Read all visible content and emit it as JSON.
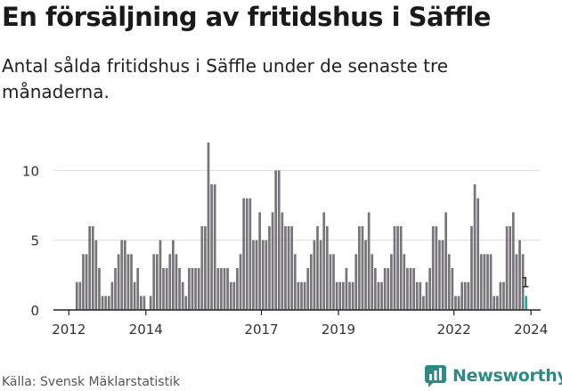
{
  "header": {
    "title": "En försäljning av fritidshus i Säffle",
    "subtitle": "Antal sålda fritidshus i Säffle under de senaste tre månaderna."
  },
  "footer": {
    "source": "Källa: Svensk Mäklarstatistik",
    "brand": "Newsworthy"
  },
  "colors": {
    "bar": "#77757a",
    "highlight": "#2aa39a",
    "grid": "#dddddd",
    "axis": "#222222",
    "brand": "#2e8a86"
  },
  "chart_data": {
    "type": "bar",
    "title": "En försäljning av fritidshus i Säffle",
    "xlabel": "",
    "ylabel": "",
    "ylim": [
      0,
      12
    ],
    "yticks": [
      0,
      5,
      10
    ],
    "x_start": 2011.6,
    "x_end": 2024.25,
    "xticks": [
      {
        "label": "2012",
        "value": 2012.0
      },
      {
        "label": "2014",
        "value": 2014.0
      },
      {
        "label": "2017",
        "value": 2017.0
      },
      {
        "label": "2019",
        "value": 2019.0
      },
      {
        "label": "2022",
        "value": 2022.0
      },
      {
        "label": "2024",
        "value": 2024.0
      }
    ],
    "start_month": "2012-03",
    "values": [
      2,
      2,
      4,
      4,
      6,
      6,
      5,
      3,
      1,
      1,
      1,
      2,
      3,
      4,
      5,
      5,
      4,
      4,
      2,
      3,
      1,
      1,
      0,
      1,
      4,
      4,
      5,
      3,
      3,
      4,
      5,
      4,
      3,
      2,
      1,
      3,
      3,
      3,
      3,
      6,
      6,
      12,
      9,
      9,
      3,
      3,
      3,
      3,
      2,
      2,
      3,
      4,
      8,
      8,
      8,
      5,
      5,
      7,
      5,
      5,
      6,
      7,
      10,
      10,
      7,
      6,
      6,
      6,
      4,
      2,
      2,
      2,
      3,
      4,
      5,
      6,
      5,
      7,
      6,
      4,
      4,
      2,
      2,
      2,
      3,
      2,
      2,
      4,
      6,
      6,
      5,
      7,
      4,
      3,
      2,
      2,
      3,
      3,
      4,
      6,
      6,
      6,
      4,
      3,
      3,
      3,
      2,
      2,
      1,
      2,
      3,
      6,
      6,
      5,
      5,
      7,
      4,
      3,
      1,
      1,
      2,
      2,
      2,
      6,
      9,
      8,
      4,
      4,
      4,
      4,
      1,
      1,
      2,
      2,
      6,
      6,
      7,
      4,
      5,
      4,
      1
    ],
    "last_label": "1"
  }
}
